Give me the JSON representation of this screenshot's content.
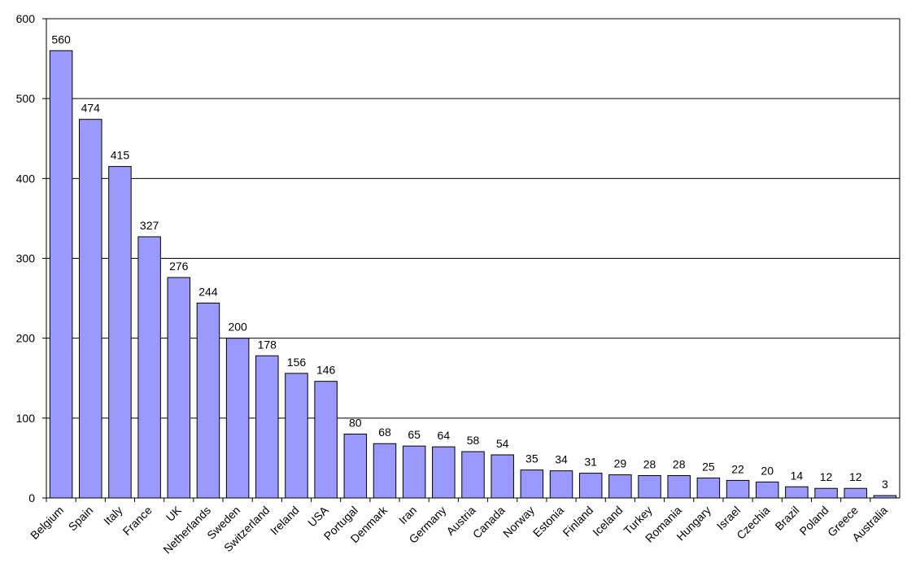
{
  "chart_data": {
    "type": "bar",
    "categories": [
      "Belgium",
      "Spain",
      "Italy",
      "France",
      "UK",
      "Netherlands",
      "Sweden",
      "Switzerland",
      "Ireland",
      "USA",
      "Portugal",
      "Denmark",
      "Iran",
      "Germany",
      "Austria",
      "Canada",
      "Norway",
      "Estonia",
      "Finland",
      "Iceland",
      "Turkey",
      "Romania",
      "Hungary",
      "Israel",
      "Czechia",
      "Brazil",
      "Poland",
      "Greece",
      "Australia"
    ],
    "values": [
      560,
      474,
      415,
      327,
      276,
      244,
      200,
      178,
      156,
      146,
      80,
      68,
      65,
      64,
      58,
      54,
      35,
      34,
      31,
      29,
      28,
      28,
      25,
      22,
      20,
      14,
      12,
      12,
      3
    ],
    "color": "#9999ff",
    "ylim": [
      0,
      600
    ],
    "yticks": [
      0,
      100,
      200,
      300,
      400,
      500,
      600
    ],
    "grid": true
  }
}
